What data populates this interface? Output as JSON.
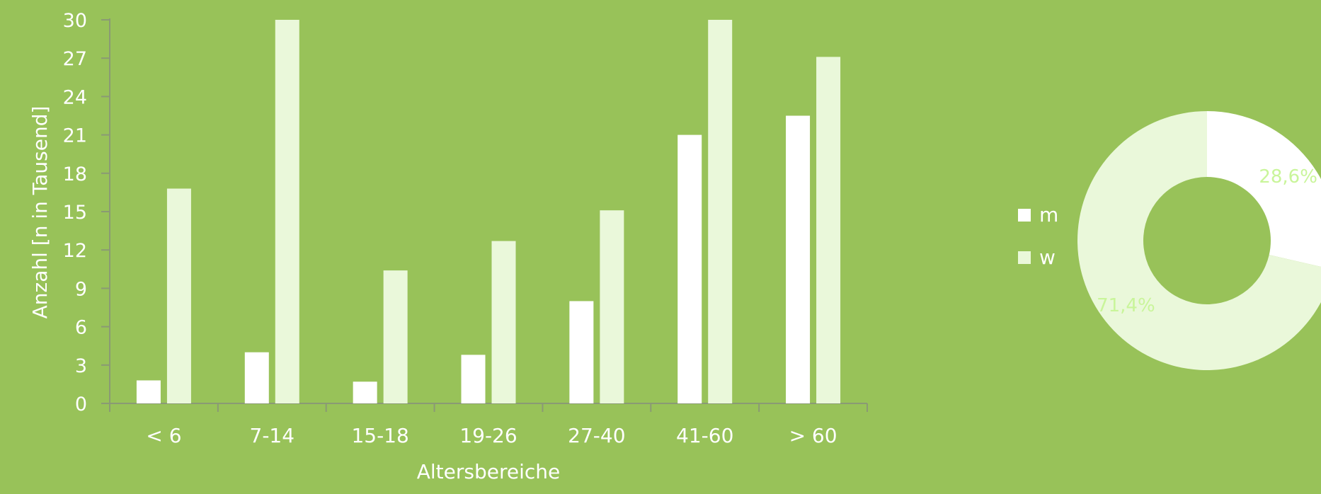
{
  "colors": {
    "background": "#98c259",
    "axis": "#8a9a74",
    "text": "#ffffff",
    "male": "#ffffff",
    "female": "#eaf8da",
    "donut_label": "#c9f59a"
  },
  "chart_data": [
    {
      "type": "bar",
      "title": "",
      "xlabel": "Altersbereiche",
      "ylabel": "Anzahl [n in Tausend]",
      "ylim": [
        0,
        30
      ],
      "yticks": [
        0,
        3,
        6,
        9,
        12,
        15,
        18,
        21,
        24,
        27,
        30
      ],
      "grid": false,
      "categories": [
        "< 6",
        "7-14",
        "15-18",
        "19-26",
        "27-40",
        "41-60",
        "> 60"
      ],
      "series": [
        {
          "name": "m",
          "color": "#ffffff",
          "values": [
            1.8,
            4.0,
            1.7,
            3.8,
            8.0,
            21.0,
            22.5
          ]
        },
        {
          "name": "w",
          "color": "#eaf8da",
          "values": [
            16.8,
            30.0,
            10.4,
            12.7,
            15.1,
            30.0,
            27.1
          ]
        }
      ]
    },
    {
      "type": "pie",
      "donut": true,
      "legend": [
        "m",
        "w"
      ],
      "legend_position": "left",
      "slices": [
        {
          "label": "m",
          "value": 28.6,
          "display": "28,6%",
          "color": "#ffffff"
        },
        {
          "label": "w",
          "value": 71.4,
          "display": "71,4%",
          "color": "#eaf8da"
        }
      ]
    }
  ]
}
